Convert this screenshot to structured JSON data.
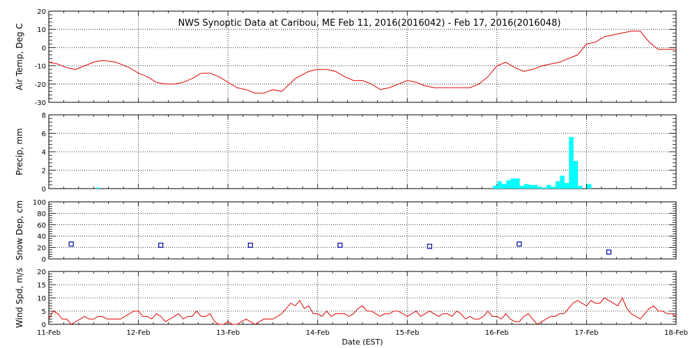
{
  "title": "NWS Synoptic Data at Caribou, ME   Feb 11, 2016(2016042) - Feb 17, 2016(2016048)",
  "xlabel": "Date (EST)",
  "x_ticks": [
    "11-Feb",
    "12-Feb",
    "13-Feb",
    "14-Feb",
    "15-Feb",
    "16-Feb",
    "17-Feb",
    "18-Feb"
  ],
  "colors": {
    "temp": "#dd0000",
    "precip": "#00ffff",
    "snow": "#000099",
    "wind": "#dd0000",
    "grid": "#000000"
  },
  "chart_data": [
    {
      "type": "line",
      "ylabel": "Air Temp, Deg C",
      "ylim": [
        -30,
        20
      ],
      "yticks": [
        -30,
        -20,
        -10,
        0,
        10,
        20
      ],
      "grid": true,
      "x_unit": "days since 11-Feb 00:00",
      "series": [
        {
          "x": [
            0,
            0.1,
            0.2,
            0.3,
            0.4,
            0.5,
            0.6,
            0.75,
            0.9,
            1.0,
            1.1,
            1.2,
            1.3,
            1.4,
            1.5,
            1.6,
            1.7,
            1.8,
            1.9,
            2.0,
            2.1,
            2.2,
            2.3,
            2.4,
            2.5,
            2.6,
            2.75,
            2.9,
            3.0,
            3.1,
            3.2,
            3.3,
            3.4,
            3.5,
            3.6,
            3.7,
            3.8,
            3.9,
            4.0,
            4.1,
            4.2,
            4.3,
            4.4,
            4.5,
            4.6,
            4.7,
            4.8,
            4.9,
            5.0,
            5.1,
            5.2,
            5.3,
            5.4,
            5.5,
            5.6,
            5.7,
            5.8,
            5.9,
            6.0,
            6.1,
            6.2,
            6.3,
            6.4,
            6.5,
            6.6,
            6.7,
            6.8,
            6.9,
            7.0
          ],
          "y": [
            -8,
            -9,
            -11,
            -12,
            -10,
            -8,
            -7,
            -8,
            -11,
            -14,
            -16,
            -19,
            -20,
            -20,
            -19,
            -17,
            -14,
            -14,
            -16,
            -19,
            -22,
            -23,
            -25,
            -25,
            -23,
            -24,
            -17,
            -13,
            -12,
            -12,
            -13,
            -16,
            -18,
            -18,
            -20,
            -23,
            -22,
            -20,
            -18,
            -19,
            -21,
            -22,
            -22,
            -22,
            -22,
            -22,
            -20,
            -16,
            -10,
            -8,
            -11,
            -13,
            -12,
            -10,
            -9,
            -8,
            -6,
            -4,
            2,
            3,
            6,
            7,
            8,
            9,
            9,
            3,
            -1,
            -1,
            -1
          ]
        }
      ]
    },
    {
      "type": "bar",
      "ylabel": "Precip, mm",
      "ylim": [
        0,
        8
      ],
      "yticks": [
        0,
        2,
        4,
        6,
        8
      ],
      "grid": true,
      "x_unit": "days since 11-Feb 00:00",
      "x": [
        0.55,
        4.98,
        5.03,
        5.08,
        5.13,
        5.18,
        5.23,
        5.28,
        5.33,
        5.38,
        5.43,
        5.48,
        5.53,
        5.58,
        5.63,
        5.68,
        5.73,
        5.78,
        5.83,
        5.88,
        5.93,
        6.03
      ],
      "values": [
        0.1,
        0.3,
        0.8,
        0.5,
        0.9,
        1.1,
        1.1,
        0.3,
        0.5,
        0.4,
        0.4,
        0.2,
        0.1,
        0.4,
        0.2,
        0.8,
        1.4,
        0.6,
        5.6,
        3.0,
        0.3,
        0.5
      ]
    },
    {
      "type": "scatter",
      "ylabel": "Snow Dep, cm",
      "ylim": [
        0,
        100
      ],
      "yticks": [
        0,
        20,
        40,
        60,
        80,
        100
      ],
      "grid": true,
      "x_unit": "days since 11-Feb 00:00",
      "x": [
        0.25,
        1.25,
        2.25,
        3.25,
        4.25,
        5.25,
        6.25
      ],
      "y": [
        26,
        24,
        24,
        24,
        22,
        26,
        12
      ]
    },
    {
      "type": "line",
      "ylabel": "Wind Spd, m/s",
      "ylim": [
        0,
        20
      ],
      "yticks": [
        0,
        5,
        10,
        15,
        20
      ],
      "grid": true,
      "x_unit": "days since 11-Feb 00:00",
      "series": [
        {
          "x": [
            0,
            0.05,
            0.1,
            0.15,
            0.2,
            0.25,
            0.3,
            0.35,
            0.4,
            0.45,
            0.5,
            0.55,
            0.6,
            0.65,
            0.7,
            0.75,
            0.8,
            0.85,
            0.9,
            0.95,
            1.0,
            1.05,
            1.1,
            1.15,
            1.2,
            1.25,
            1.3,
            1.35,
            1.4,
            1.45,
            1.5,
            1.55,
            1.6,
            1.65,
            1.7,
            1.75,
            1.8,
            1.85,
            1.9,
            1.95,
            2.0,
            2.05,
            2.1,
            2.15,
            2.2,
            2.25,
            2.3,
            2.35,
            2.4,
            2.45,
            2.5,
            2.55,
            2.6,
            2.65,
            2.7,
            2.75,
            2.8,
            2.85,
            2.9,
            2.95,
            3.0,
            3.05,
            3.1,
            3.15,
            3.2,
            3.25,
            3.3,
            3.35,
            3.4,
            3.45,
            3.5,
            3.55,
            3.6,
            3.65,
            3.7,
            3.75,
            3.8,
            3.85,
            3.9,
            3.95,
            4.0,
            4.05,
            4.1,
            4.15,
            4.2,
            4.25,
            4.3,
            4.35,
            4.4,
            4.45,
            4.5,
            4.55,
            4.6,
            4.65,
            4.7,
            4.75,
            4.8,
            4.85,
            4.9,
            4.95,
            5.0,
            5.05,
            5.1,
            5.15,
            5.2,
            5.25,
            5.3,
            5.35,
            5.4,
            5.45,
            5.5,
            5.55,
            5.6,
            5.65,
            5.7,
            5.75,
            5.8,
            5.85,
            5.9,
            5.95,
            6.0,
            6.05,
            6.1,
            6.15,
            6.2,
            6.25,
            6.3,
            6.35,
            6.4,
            6.45,
            6.5,
            6.55,
            6.6,
            6.65,
            6.7,
            6.75,
            6.8,
            6.85,
            6.9,
            6.95,
            7.0
          ],
          "y": [
            2,
            5,
            4,
            2,
            2,
            0,
            1,
            2,
            3,
            2,
            2,
            3,
            3,
            2,
            2,
            2,
            2,
            3,
            4,
            5,
            5,
            3,
            3,
            2,
            4,
            3,
            1,
            2,
            3,
            4,
            2,
            3,
            3,
            5,
            3,
            3,
            4,
            1,
            0,
            0,
            1,
            0,
            0,
            1,
            2,
            1,
            0,
            1,
            2,
            2,
            2,
            3,
            4,
            6,
            8,
            7,
            9,
            6,
            7,
            4,
            4,
            3,
            5,
            3,
            4,
            4,
            4,
            3,
            4,
            6,
            7,
            5,
            5,
            4,
            3,
            4,
            4,
            5,
            5,
            4,
            3,
            4,
            5,
            3,
            4,
            5,
            4,
            3,
            4,
            4,
            3,
            5,
            4,
            2,
            3,
            2,
            2,
            3,
            5,
            3,
            3,
            2,
            4,
            2,
            1,
            1,
            3,
            4,
            2,
            0,
            1,
            2,
            3,
            3,
            4,
            4,
            6,
            8,
            9,
            8,
            7,
            9,
            8,
            8,
            10,
            9,
            8,
            7,
            10,
            6,
            4,
            3,
            2,
            4,
            6,
            7,
            5,
            5,
            4,
            4,
            3
          ]
        }
      ]
    }
  ]
}
